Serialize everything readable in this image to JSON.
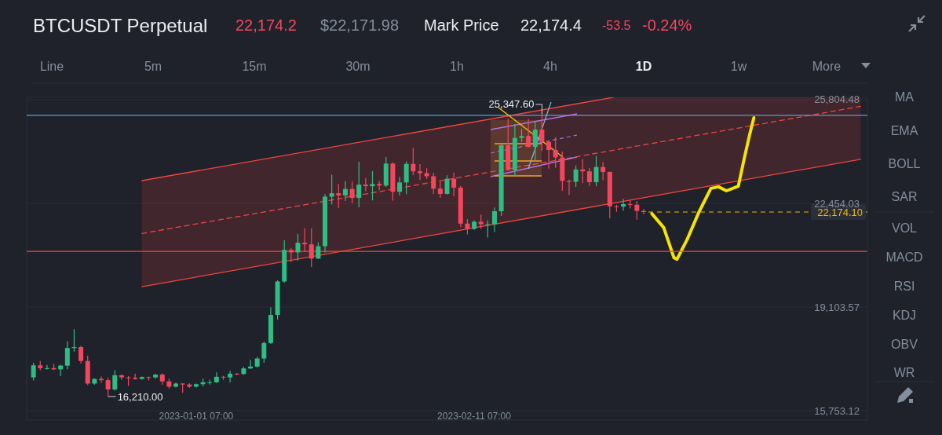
{
  "chart_data": {
    "type": "candlestick",
    "title": "BTCUSDT Perpetual",
    "annotations": [
      "22,174.2",
      "$22,171.98",
      "Mark Price",
      "22,174.4",
      "-53.5",
      "-0.24%",
      "Line",
      "5m",
      "15m",
      "30m",
      "1h",
      "4h",
      "1D",
      "1w",
      "More",
      "MA",
      "EMA",
      "BOLL",
      "SAR",
      "VOL",
      "MACD",
      "RSI",
      "KDJ",
      "OBV",
      "WR",
      {
        "text": "16,210.00",
        "x": "2022-12-19T07:00",
        "y": 16210
      },
      {
        "text": "25,347.60",
        "x": "2023-02-21T07:00",
        "y": 25347.6
      }
    ],
    "x": [
      "2022-12-08T07:00",
      "2022-12-09T07:00",
      "2022-12-10T07:00",
      "2022-12-11T07:00",
      "2022-12-12T07:00",
      "2022-12-13T07:00",
      "2022-12-14T07:00",
      "2022-12-15T07:00",
      "2022-12-16T07:00",
      "2022-12-17T07:00",
      "2022-12-18T07:00",
      "2022-12-19T07:00",
      "2022-12-20T07:00",
      "2022-12-21T07:00",
      "2022-12-22T07:00",
      "2022-12-23T07:00",
      "2022-12-24T07:00",
      "2022-12-25T07:00",
      "2022-12-26T07:00",
      "2022-12-27T07:00",
      "2022-12-28T07:00",
      "2022-12-29T07:00",
      "2022-12-30T07:00",
      "2022-12-31T07:00",
      "2023-01-01T07:00",
      "2023-01-02T07:00",
      "2023-01-03T07:00",
      "2023-01-04T07:00",
      "2023-01-05T07:00",
      "2023-01-06T07:00",
      "2023-01-07T07:00",
      "2023-01-08T07:00",
      "2023-01-09T07:00",
      "2023-01-10T07:00",
      "2023-01-11T07:00",
      "2023-01-12T07:00",
      "2023-01-13T07:00",
      "2023-01-14T07:00",
      "2023-01-15T07:00",
      "2023-01-16T07:00",
      "2023-01-17T07:00",
      "2023-01-18T07:00",
      "2023-01-19T07:00",
      "2023-01-20T07:00",
      "2023-01-21T07:00",
      "2023-01-22T07:00",
      "2023-01-23T07:00",
      "2023-01-24T07:00",
      "2023-01-25T07:00",
      "2023-01-26T07:00",
      "2023-01-27T07:00",
      "2023-01-28T07:00",
      "2023-01-29T07:00",
      "2023-01-30T07:00",
      "2023-01-31T07:00",
      "2023-02-01T07:00",
      "2023-02-02T07:00",
      "2023-02-03T07:00",
      "2023-02-04T07:00",
      "2023-02-05T07:00",
      "2023-02-06T07:00",
      "2023-02-07T07:00",
      "2023-02-08T07:00",
      "2023-02-09T07:00",
      "2023-02-10T07:00",
      "2023-02-11T07:00",
      "2023-02-12T07:00",
      "2023-02-13T07:00",
      "2023-02-14T07:00",
      "2023-02-15T07:00",
      "2023-02-16T07:00",
      "2023-02-17T07:00",
      "2023-02-18T07:00",
      "2023-02-19T07:00",
      "2023-02-20T07:00",
      "2023-02-21T07:00",
      "2023-02-22T07:00",
      "2023-02-23T07:00",
      "2023-02-24T07:00",
      "2023-02-25T07:00",
      "2023-02-26T07:00",
      "2023-02-27T07:00",
      "2023-02-28T07:00",
      "2023-03-01T07:00",
      "2023-03-02T07:00",
      "2023-03-03T07:00",
      "2023-03-04T07:00",
      "2023-03-05T07:00",
      "2023-03-06T07:00",
      "2023-03-07T07:00",
      "2023-03-08T07:00"
    ],
    "ohlc": [
      [
        16830,
        17300,
        16730,
        17220
      ],
      [
        17220,
        17360,
        17060,
        17130
      ],
      [
        17130,
        17230,
        17080,
        17130
      ],
      [
        17130,
        17270,
        17070,
        17090
      ],
      [
        17090,
        17240,
        16870,
        17210
      ],
      [
        17210,
        18000,
        17090,
        17780
      ],
      [
        17780,
        18390,
        17660,
        17810
      ],
      [
        17810,
        17850,
        17280,
        17360
      ],
      [
        17360,
        17530,
        16580,
        16630
      ],
      [
        16630,
        16800,
        16590,
        16780
      ],
      [
        16780,
        16860,
        16650,
        16740
      ],
      [
        16740,
        16820,
        16210,
        16440
      ],
      [
        16440,
        17060,
        16400,
        16900
      ],
      [
        16900,
        16920,
        16750,
        16830
      ],
      [
        16830,
        16870,
        16560,
        16820
      ],
      [
        16820,
        16950,
        16760,
        16780
      ],
      [
        16780,
        16860,
        16760,
        16840
      ],
      [
        16840,
        16860,
        16730,
        16830
      ],
      [
        16830,
        16940,
        16790,
        16920
      ],
      [
        16920,
        16960,
        16590,
        16700
      ],
      [
        16700,
        16780,
        16470,
        16530
      ],
      [
        16530,
        16660,
        16500,
        16630
      ],
      [
        16630,
        16640,
        16330,
        16600
      ],
      [
        16600,
        16640,
        16490,
        16530
      ],
      [
        16530,
        16630,
        16500,
        16610
      ],
      [
        16610,
        16790,
        16540,
        16670
      ],
      [
        16670,
        16760,
        16600,
        16670
      ],
      [
        16670,
        16990,
        16650,
        16850
      ],
      [
        16850,
        16880,
        16750,
        16830
      ],
      [
        16830,
        17040,
        16670,
        16950
      ],
      [
        16950,
        16970,
        16900,
        16940
      ],
      [
        16940,
        17170,
        16910,
        17120
      ],
      [
        17120,
        17400,
        17100,
        17180
      ],
      [
        17180,
        17490,
        17150,
        17440
      ],
      [
        17440,
        17990,
        17300,
        17940
      ],
      [
        17940,
        19100,
        17910,
        18850
      ],
      [
        18850,
        19970,
        18700,
        19930
      ],
      [
        19930,
        21260,
        19890,
        20950
      ],
      [
        20950,
        21000,
        20560,
        20870
      ],
      [
        20870,
        21470,
        20600,
        21180
      ],
      [
        21180,
        21650,
        20880,
        21130
      ],
      [
        21130,
        21650,
        20400,
        20670
      ],
      [
        20670,
        21190,
        20650,
        21070
      ],
      [
        21070,
        22750,
        20870,
        22670
      ],
      [
        22670,
        23380,
        22420,
        22780
      ],
      [
        22780,
        23080,
        22300,
        22710
      ],
      [
        22710,
        23170,
        22530,
        22920
      ],
      [
        22920,
        23160,
        22460,
        22630
      ],
      [
        22630,
        23800,
        22330,
        23060
      ],
      [
        23060,
        23280,
        22850,
        23010
      ],
      [
        23010,
        23500,
        22550,
        23080
      ],
      [
        23080,
        23180,
        22880,
        23030
      ],
      [
        23030,
        23950,
        22990,
        23740
      ],
      [
        23740,
        23780,
        22540,
        22830
      ],
      [
        22830,
        23310,
        22710,
        23130
      ],
      [
        23130,
        23810,
        22750,
        23730
      ],
      [
        23730,
        24250,
        23370,
        23490
      ],
      [
        23490,
        23720,
        23210,
        23430
      ],
      [
        23430,
        23590,
        23250,
        23330
      ],
      [
        23330,
        23440,
        22760,
        22930
      ],
      [
        22930,
        23160,
        22630,
        22760
      ],
      [
        22760,
        23360,
        22740,
        23250
      ],
      [
        23250,
        23450,
        22680,
        22960
      ],
      [
        22960,
        23010,
        21690,
        21800
      ],
      [
        21800,
        21940,
        21450,
        21630
      ],
      [
        21630,
        21900,
        21600,
        21860
      ],
      [
        21860,
        22090,
        21630,
        21780
      ],
      [
        21780,
        21900,
        21350,
        21780
      ],
      [
        21780,
        22320,
        21530,
        22200
      ],
      [
        22200,
        24370,
        22050,
        24330
      ],
      [
        24330,
        25200,
        23510,
        23530
      ],
      [
        23530,
        25020,
        23340,
        24570
      ],
      [
        24570,
        24870,
        24440,
        24630
      ],
      [
        24630,
        25190,
        24260,
        24280
      ],
      [
        24280,
        25120,
        23840,
        24840
      ],
      [
        24840,
        25347.6,
        24150,
        24440
      ],
      [
        24440,
        24470,
        23580,
        24180
      ],
      [
        24180,
        24600,
        23610,
        23940
      ],
      [
        23940,
        24130,
        22860,
        23180
      ],
      [
        23180,
        23220,
        22720,
        23150
      ],
      [
        23150,
        23680,
        22990,
        23550
      ],
      [
        23550,
        23880,
        23110,
        23490
      ],
      [
        23490,
        23600,
        23020,
        23140
      ],
      [
        23140,
        23980,
        23010,
        23630
      ],
      [
        23630,
        23790,
        23200,
        23470
      ],
      [
        23470,
        23480,
        21970,
        22360
      ],
      [
        22360,
        22410,
        22180,
        22350
      ],
      [
        22350,
        22600,
        22210,
        22430
      ],
      [
        22430,
        22550,
        22290,
        22410
      ],
      [
        22410,
        22530,
        21930,
        22210
      ],
      [
        22210,
        22270,
        22100,
        22174.1
      ]
    ],
    "series": [
      {
        "type": "line",
        "color": "#f0453e",
        "line_style": "dashed",
        "x": [
          "2022-12-24T07:00",
          "2023-03-03T19:00",
          "2023-04-09T07:00"
        ],
        "values": [
          21480,
          24170,
          25590
        ],
        "lower": [
          19760,
          22450,
          23880
        ],
        "upper": [
          23190,
          25880,
          25880
        ]
      },
      {
        "type": "line",
        "color": "#f0453e",
        "x": [
          "2022-12-24T07:00",
          "2023-03-03T19:00"
        ],
        "values": [
          23190,
          25880
        ]
      },
      {
        "type": "line",
        "color": "#f0453e",
        "x": [
          "2022-12-24T07:00",
          "2023-04-09T07:00"
        ],
        "values": [
          19760,
          23880
        ]
      },
      {
        "type": "line",
        "color": "#f5e400",
        "x": [
          "2023-03-09T12:00",
          "2023-03-11T06:00",
          "2023-03-12T18:00",
          "2023-03-13T05:00",
          "2023-03-14T17:00",
          "2023-03-16T11:00",
          "2023-03-18T05:00",
          "2023-03-19T08:00",
          "2023-03-20T12:00",
          "2023-03-22T06:00",
          "2023-03-23T04:00",
          "2023-03-23T23:00",
          "2023-03-24T13:00"
        ],
        "values": [
          22120,
          21670,
          20700,
          20650,
          21290,
          22180,
          22940,
          22990,
          22860,
          23010,
          23950,
          24710,
          25220
        ]
      }
    ],
    "ref_lines": [
      {
        "axis": "y",
        "value": 25300,
        "color": "#5b9bd5"
      },
      {
        "axis": "y",
        "value": 20905,
        "color": "#f0453e"
      },
      {
        "axis": "y",
        "value": 22174.1,
        "label": "22,174.10",
        "color": "#f0b90b",
        "line_style": "dashed"
      }
    ],
    "xlim": [
      "2022-12-07T07:00",
      "2023-04-10T07:00"
    ],
    "xticks": [
      {
        "value": "2023-01-01T07:00",
        "label": "2023-01-01 07:00"
      },
      {
        "value": "2023-02-11T07:00",
        "label": "2023-02-11 07:00"
      }
    ],
    "ylim": [
      15450,
      25880
    ],
    "yticks": [
      {
        "value": 15753.12,
        "label": "15,753.12"
      },
      {
        "value": 19103.57,
        "label": "19,103.57"
      },
      {
        "value": 22454.03,
        "label": "22,454.03"
      },
      {
        "value": 25804.48,
        "label": "25,804.48"
      }
    ],
    "grid": "y"
  }
}
